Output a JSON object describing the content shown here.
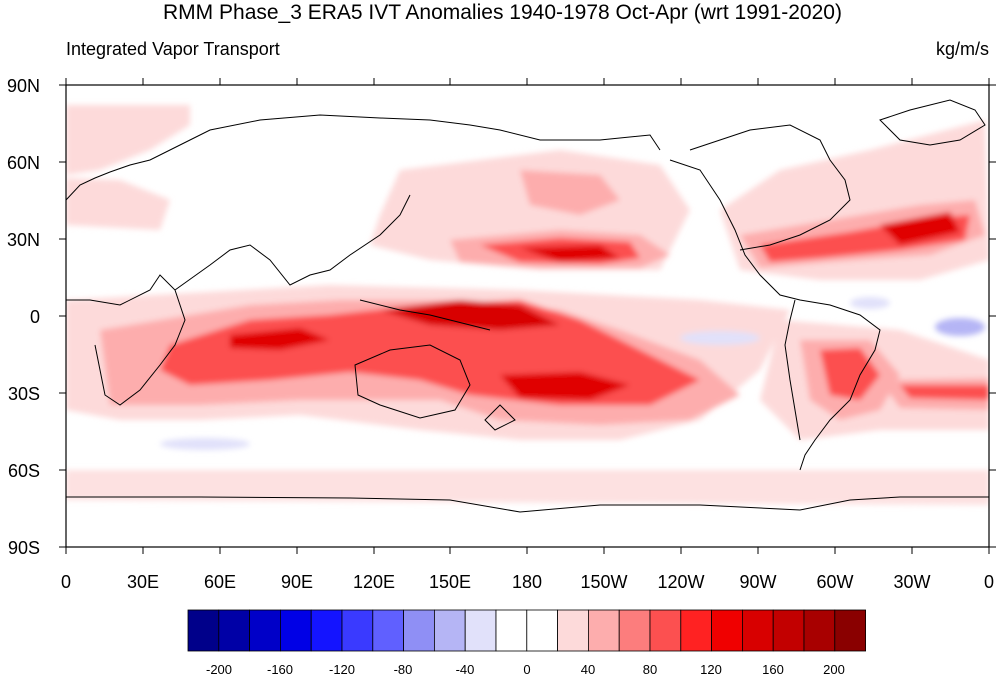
{
  "header": {
    "title": "RMM Phase_3 ERA5 IVT Anomalies 1940-1978 Oct-Apr (wrt 1991-2020)",
    "left_label": "Integrated Vapor Transport",
    "right_label": "kg/m/s"
  },
  "map": {
    "projection": "cylindrical equidistant",
    "lon_range": [
      0,
      360
    ],
    "lat_range": [
      -90,
      90
    ],
    "lat_tick_labels": [
      "90N",
      "60N",
      "30N",
      "0",
      "30S",
      "60S",
      "90S"
    ],
    "lon_tick_labels": [
      "0",
      "30E",
      "60E",
      "90E",
      "120E",
      "150E",
      "180",
      "150W",
      "120W",
      "90W",
      "60W",
      "30W",
      "0"
    ]
  },
  "colorbar": {
    "label_values": [
      "-200",
      "-160",
      "-120",
      "-80",
      "-40",
      "0",
      "40",
      "80",
      "120",
      "160",
      "200"
    ],
    "colors": [
      "#00008a",
      "#0000a6",
      "#0000c8",
      "#0000e6",
      "#1414ff",
      "#3a3aff",
      "#6060ff",
      "#8f8ff5",
      "#b5b5f5",
      "#e1e1fa",
      "#ffffff",
      "#ffffff",
      "#fddada",
      "#fdadad",
      "#fc7d7d",
      "#fc5050",
      "#ff2222",
      "#f00000",
      "#d80000",
      "#c20000",
      "#a80000",
      "#8a0000"
    ]
  }
}
